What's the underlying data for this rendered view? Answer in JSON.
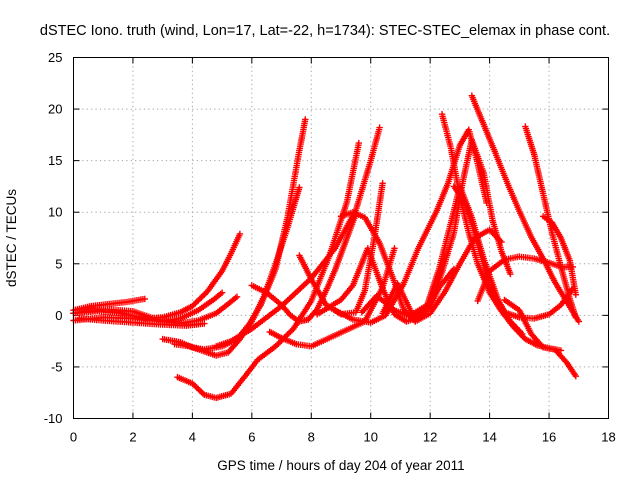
{
  "chart_data": {
    "type": "scatter",
    "title": "dSTEC Iono. truth (wind, Lon=17, Lat=-22, h=1734): STEC-STEC_elemax in phase cont.",
    "xlabel": "GPS time / hours of day 204 of year 2011",
    "ylabel": "dSTEC  / TECUs",
    "xlim": [
      0,
      18
    ],
    "ylim": [
      -10,
      25
    ],
    "xticks": [
      "0",
      "2",
      "4",
      "6",
      "8",
      "10",
      "12",
      "14",
      "16",
      "18"
    ],
    "yticks": [
      "-10",
      "-5",
      "0",
      "5",
      "10",
      "15",
      "20",
      "25"
    ],
    "grid": true,
    "marker": "+",
    "color": "#ff0000",
    "series": [
      {
        "x": [
          0.0,
          0.6,
          1.2,
          1.8,
          2.4
        ],
        "y": [
          0.5,
          0.9,
          1.1,
          1.3,
          1.6
        ]
      },
      {
        "x": [
          0.0,
          0.8,
          1.6,
          2.4,
          3.0,
          3.6,
          4.0,
          4.5,
          5.0,
          5.3,
          5.6
        ],
        "y": [
          0.2,
          0.4,
          0.2,
          -0.3,
          -0.2,
          0.3,
          0.9,
          2.3,
          4.3,
          6.0,
          7.9
        ]
      },
      {
        "x": [
          0.0,
          1.0,
          2.0,
          3.0,
          3.6,
          4.2,
          4.7,
          5.0
        ],
        "y": [
          -0.5,
          -0.2,
          -0.3,
          -0.6,
          -0.3,
          0.5,
          1.5,
          2.2
        ]
      },
      {
        "x": [
          0.0,
          1.0,
          2.0,
          2.8,
          3.5,
          4.2,
          4.8,
          5.2,
          5.5
        ],
        "y": [
          0.2,
          0.6,
          0.4,
          -0.4,
          -0.8,
          -0.5,
          0.2,
          1.1,
          1.8
        ]
      },
      {
        "x": [
          0.2,
          1.0,
          2.0,
          3.0,
          3.8,
          4.4
        ],
        "y": [
          -0.3,
          -0.5,
          -0.7,
          -0.9,
          -1.0,
          -0.8
        ]
      },
      {
        "x": [
          3.0,
          3.6,
          4.0,
          4.4,
          5.0,
          5.5,
          5.9,
          6.3,
          6.8,
          7.2,
          7.6,
          7.8
        ],
        "y": [
          -2.3,
          -2.6,
          -3.1,
          -3.3,
          -3.0,
          -2.3,
          -0.9,
          1.0,
          4.5,
          9.5,
          16.0,
          19.0
        ]
      },
      {
        "x": [
          3.4,
          3.9,
          4.3,
          4.8,
          5.2,
          5.6,
          6.0,
          6.4,
          6.8,
          7.2,
          7.6
        ],
        "y": [
          -2.8,
          -3.0,
          -3.4,
          -3.9,
          -3.6,
          -2.3,
          -0.6,
          1.8,
          5.0,
          8.5,
          12.4
        ]
      },
      {
        "x": [
          3.5,
          4.0,
          4.4,
          4.8,
          5.3,
          5.8,
          6.2,
          6.8,
          7.4,
          8.0,
          8.6,
          9.2,
          9.6
        ],
        "y": [
          -6.0,
          -6.6,
          -7.7,
          -8.0,
          -7.6,
          -5.8,
          -4.3,
          -3.0,
          -1.3,
          1.4,
          5.7,
          11.0,
          16.7
        ]
      },
      {
        "x": [
          6.0,
          6.5,
          7.0,
          7.3,
          7.6,
          7.9,
          8.2,
          8.5,
          8.8,
          9.2,
          9.5
        ],
        "y": [
          2.9,
          2.2,
          1.0,
          0.0,
          -0.6,
          -0.4,
          0.6,
          2.4,
          4.4,
          7.5,
          9.8
        ]
      },
      {
        "x": [
          6.6,
          7.0,
          7.5,
          8.0,
          8.6,
          9.2,
          9.8,
          10.4,
          10.8
        ],
        "y": [
          -1.6,
          -2.2,
          -2.8,
          -3.0,
          -2.2,
          -1.4,
          -0.6,
          2.7,
          6.5
        ]
      },
      {
        "x": [
          4.8,
          5.3,
          6.0,
          7.0,
          8.0,
          8.8,
          9.5,
          10.0,
          10.3
        ],
        "y": [
          -3.0,
          -2.5,
          -1.3,
          0.9,
          3.6,
          6.5,
          10.2,
          15.0,
          18.2
        ]
      },
      {
        "x": [
          7.6,
          8.0,
          8.5,
          9.0,
          9.5,
          9.8,
          10.1,
          10.4
        ],
        "y": [
          5.8,
          3.5,
          1.0,
          0.1,
          0.3,
          2.4,
          7.1,
          12.8
        ]
      },
      {
        "x": [
          8.2,
          9.0,
          9.4,
          9.9,
          10.4,
          10.8,
          11.2,
          11.6,
          12.0,
          12.3,
          12.8
        ],
        "y": [
          0.1,
          1.5,
          2.9,
          6.5,
          2.6,
          0.1,
          -0.6,
          -0.2,
          0.9,
          2.7,
          4.5
        ]
      },
      {
        "x": [
          9.0,
          9.4,
          9.8,
          10.3,
          10.8,
          11.1,
          11.5,
          12.0,
          12.5,
          13.0,
          13.5,
          14.0,
          14.4
        ],
        "y": [
          9.6,
          10.0,
          9.5,
          7.0,
          3.2,
          0.6,
          -0.6,
          0.2,
          2.3,
          5.0,
          7.5,
          8.3,
          7.1
        ]
      },
      {
        "x": [
          8.8,
          9.4,
          10.0,
          10.5,
          11.1,
          11.6,
          12.2,
          12.6,
          13.0,
          13.3,
          13.6,
          13.9
        ],
        "y": [
          0.5,
          -0.4,
          -0.7,
          0.0,
          3.0,
          6.5,
          10.0,
          12.8,
          16.5,
          18.0,
          14.7,
          10.9
        ]
      },
      {
        "x": [
          9.7,
          10.2,
          10.8,
          11.4,
          12.0,
          12.4,
          12.8,
          13.1,
          13.4,
          13.8,
          14.1,
          14.4,
          14.7
        ],
        "y": [
          0.3,
          1.9,
          0.5,
          -0.2,
          1.2,
          4.2,
          8.0,
          13.0,
          17.0,
          13.8,
          9.2,
          6.2,
          4.0
        ]
      },
      {
        "x": [
          10.4,
          10.9,
          11.4,
          11.9,
          12.3,
          12.7,
          13.0,
          13.4,
          13.8,
          14.3,
          14.7,
          15.1
        ],
        "y": [
          0.2,
          3.1,
          0.1,
          1.0,
          4.5,
          9.0,
          12.5,
          9.5,
          5.5,
          1.4,
          -0.6,
          -1.8
        ]
      },
      {
        "x": [
          12.4,
          12.7,
          13.0,
          13.3,
          13.6,
          14.0,
          14.4,
          14.8,
          15.2,
          15.6,
          16.0,
          16.4
        ],
        "y": [
          19.5,
          16.2,
          11.5,
          8.0,
          5.0,
          2.2,
          0.4,
          -1.1,
          -2.3,
          -2.9,
          -3.2,
          -3.4
        ]
      },
      {
        "x": [
          12.8,
          13.2,
          13.6,
          14.0,
          14.5,
          15.0,
          15.5,
          16.0,
          16.4,
          16.8
        ],
        "y": [
          12.5,
          10.8,
          7.0,
          2.8,
          0.3,
          -0.2,
          -0.3,
          0.1,
          1.0,
          2.6
        ]
      },
      {
        "x": [
          13.4,
          13.8,
          14.2,
          14.6,
          15.0,
          15.4,
          15.8,
          16.2,
          16.6,
          17.0
        ],
        "y": [
          21.3,
          18.5,
          15.7,
          12.8,
          10.1,
          7.6,
          5.5,
          3.2,
          1.3,
          -0.6
        ]
      },
      {
        "x": [
          13.6,
          14.0,
          14.5,
          15.0,
          15.5,
          16.0,
          16.4,
          16.8
        ],
        "y": [
          1.4,
          4.3,
          5.4,
          5.7,
          5.5,
          5.1,
          4.7,
          4.7
        ]
      },
      {
        "x": [
          14.5,
          15.0,
          15.4,
          15.8,
          16.2,
          16.6,
          16.9
        ],
        "y": [
          1.5,
          0.5,
          -1.8,
          -3.1,
          -3.3,
          -4.6,
          -5.9
        ]
      },
      {
        "x": [
          15.2,
          15.5,
          15.8,
          16.1,
          16.4,
          16.7,
          16.9
        ],
        "y": [
          18.3,
          15.6,
          11.8,
          8.0,
          4.7,
          1.6,
          -0.2
        ]
      },
      {
        "x": [
          15.8,
          16.1,
          16.4,
          16.7,
          16.9
        ],
        "y": [
          9.6,
          9.0,
          7.5,
          5.3,
          2.0
        ]
      }
    ]
  }
}
